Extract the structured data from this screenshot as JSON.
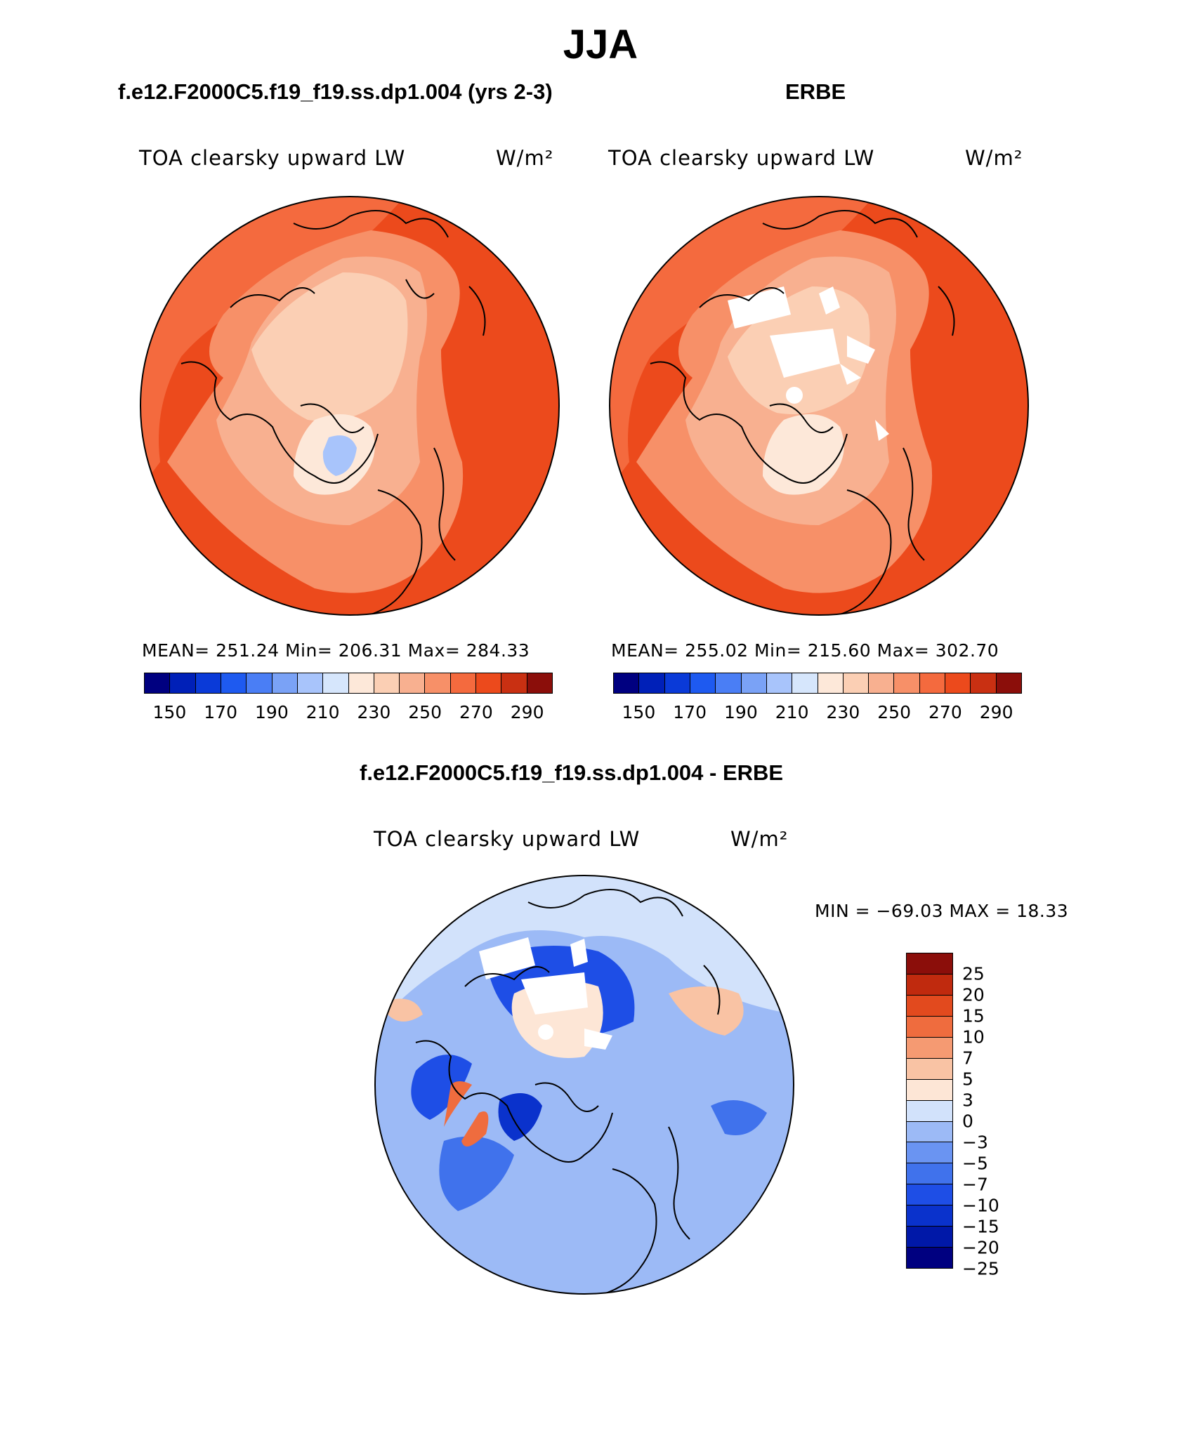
{
  "page": {
    "title": "JJA"
  },
  "colors": {
    "land_outline": "#000000",
    "map_scale_abs": [
      "#000080",
      "#0020b8",
      "#0a3ad8",
      "#1e5af0",
      "#4a7ef5",
      "#7aa2f6",
      "#a8c4fb",
      "#d6e6fc",
      "#fde8d9",
      "#fbcfb4",
      "#f8b090",
      "#f79068",
      "#f46a3e",
      "#ec4a1c",
      "#c93012",
      "#8b0e0a"
    ],
    "map_scale_diff": [
      "#000080",
      "#0018a8",
      "#0a32cc",
      "#1e4ee6",
      "#4072ec",
      "#6a94f2",
      "#9cbaf6",
      "#d2e2fb",
      "#fde6d6",
      "#f9c3a4",
      "#f59a72",
      "#ef6c3e",
      "#e24a1e",
      "#c02a0e",
      "#8b0e0a"
    ]
  },
  "panels": [
    {
      "id": "model",
      "title": "f.e12.F2000C5.f19_f19.ss.dp1.004 (yrs 2-3)",
      "variable": "TOA clearsky upward LW",
      "units": "W/m²",
      "stats": "MEAN= 251.24   Min= 206.31   Max= 284.33",
      "colorbar": {
        "ticks": [
          "150",
          "170",
          "190",
          "210",
          "230",
          "250",
          "270",
          "290"
        ]
      }
    },
    {
      "id": "obs",
      "title": "ERBE",
      "variable": "TOA clearsky upward LW",
      "units": "W/m²",
      "stats": "MEAN= 255.02   Min= 215.60   Max= 302.70",
      "colorbar": {
        "ticks": [
          "150",
          "170",
          "190",
          "210",
          "230",
          "250",
          "270",
          "290"
        ]
      }
    }
  ],
  "difference": {
    "title": "f.e12.F2000C5.f19_f19.ss.dp1.004 - ERBE",
    "variable": "TOA clearsky upward LW",
    "units": "W/m²",
    "stats": "MIN = −69.03 MAX =  18.33",
    "colorbar": {
      "ticks": [
        "25",
        "20",
        "15",
        "10",
        "7",
        "5",
        "3",
        "0",
        "−3",
        "−5",
        "−7",
        "−10",
        "−15",
        "−20",
        "−25"
      ]
    }
  }
}
